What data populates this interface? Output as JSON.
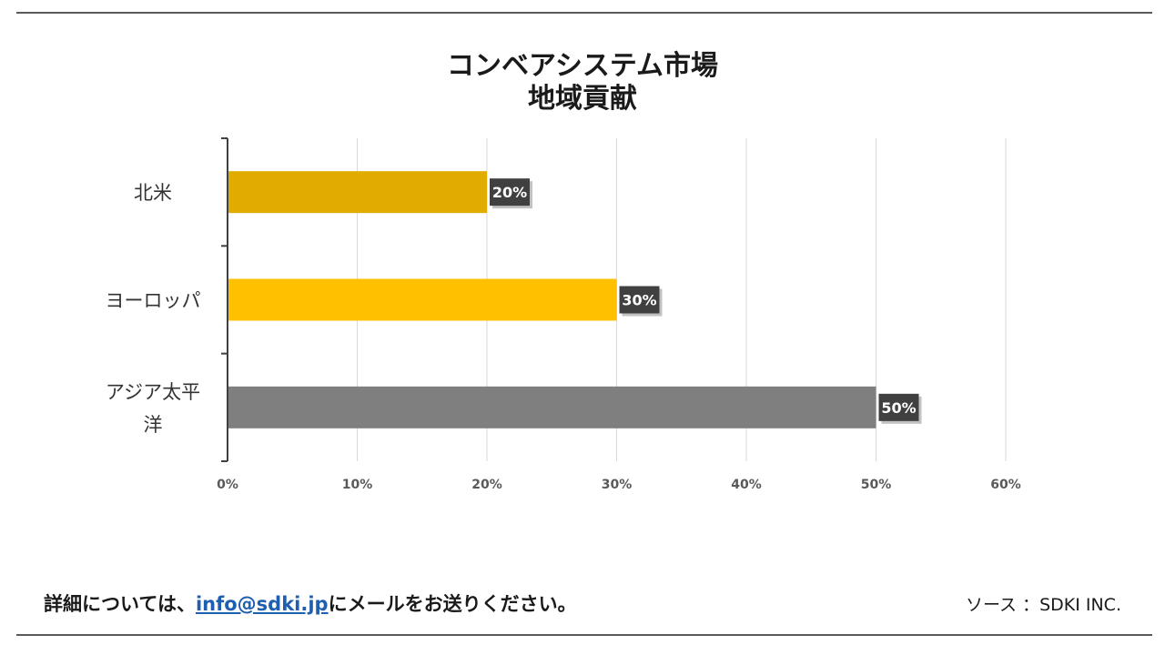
{
  "chart_data": {
    "type": "bar",
    "orientation": "horizontal",
    "title": "コンベアシステム市場",
    "subtitle": "地域貢献",
    "categories": [
      "北米",
      "ヨーロッパ",
      "アジア太平洋"
    ],
    "category_lines": [
      [
        "北米"
      ],
      [
        "ヨーロッパ"
      ],
      [
        "アジア太平",
        "洋"
      ]
    ],
    "values": [
      20,
      30,
      50
    ],
    "data_labels": [
      "20%",
      "30%",
      "50%"
    ],
    "colors": [
      "#e0ac00",
      "#ffc000",
      "#7f7f7f"
    ],
    "xlim": [
      0,
      60
    ],
    "xticks": [
      0,
      10,
      20,
      30,
      40,
      50,
      60
    ],
    "xtick_labels": [
      "0%",
      "10%",
      "20%",
      "30%",
      "40%",
      "50%",
      "60%"
    ],
    "grid": true,
    "label_box_color": "#404040"
  },
  "footer": {
    "text_before": "詳細については、",
    "email": "info@sdki.jp",
    "text_after": "にメールをお送りください。",
    "source": "ソース ：SDKI INC."
  }
}
